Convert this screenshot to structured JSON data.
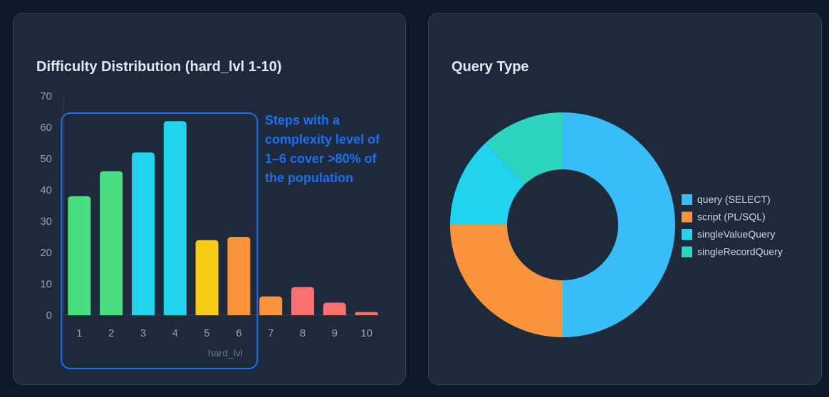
{
  "chart_data": [
    {
      "type": "bar",
      "title": "Difficulty Distribution (hard_lvl 1-10)",
      "xlabel": "hard_lvl",
      "ylabel": "",
      "ylim": [
        0,
        70
      ],
      "yticks": [
        0,
        10,
        20,
        30,
        40,
        50,
        60,
        70
      ],
      "categories": [
        "1",
        "2",
        "3",
        "4",
        "5",
        "6",
        "7",
        "8",
        "9",
        "10"
      ],
      "values": [
        38,
        46,
        52,
        62,
        24,
        25,
        6,
        9,
        4,
        1
      ],
      "colors": [
        "#4ade80",
        "#4ade80",
        "#22d3ee",
        "#22d3ee",
        "#facc15",
        "#fb923c",
        "#fb923c",
        "#f87171",
        "#f87171",
        "#f87171"
      ],
      "grid": false,
      "annotation": {
        "text_lines": [
          "Steps with a",
          "complexity level of",
          "1–6 cover >80% of",
          "the population"
        ],
        "highlight_categories": [
          "1",
          "2",
          "3",
          "4",
          "5",
          "6"
        ],
        "color": "#1d6ff2"
      }
    },
    {
      "type": "pie",
      "title": "Query Type",
      "donut": true,
      "legend_position": "right",
      "labels": [
        "query (SELECT)",
        "script (PL/SQL)",
        "singleValueQuery",
        "singleRecordQuery"
      ],
      "values": [
        50,
        25,
        13,
        12
      ],
      "colors": [
        "#38bdf8",
        "#fb923c",
        "#22d3ee",
        "#2dd4bf"
      ]
    }
  ]
}
